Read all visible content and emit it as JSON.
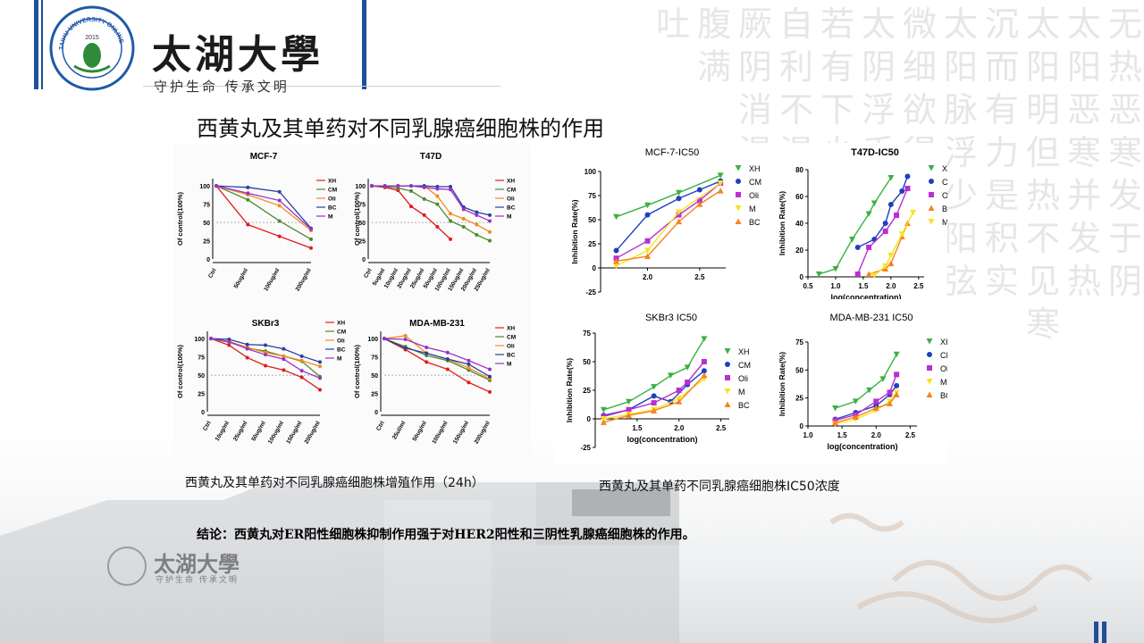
{
  "header": {
    "university_name": "太湖大學",
    "slogan": "守护生命 传承文明",
    "logo_text": "TAIHU UNIVERSITY ONLINE",
    "logo_year": "2015"
  },
  "slide": {
    "title": "西黄丸及其单药对不同乳腺癌细胞株的作用",
    "caption_left": "西黄丸及其单药对不同乳腺癌细胞株增殖作用（24h）",
    "caption_right": "西黄丸及其单药不同乳腺癌细胞株IC50浓度",
    "conclusion": "结论：西黄丸对ER阳性细胞株抑制作用强于对HER2阳性和三阴性乳腺癌细胞株的作用。"
  },
  "background_watermark": {
    "columns": [
      "无热恶寒发于阴",
      "太阳恶寒并发热",
      "太阳明但热不见寒",
      "沉而有力是积实",
      "太阳脉浮少阳弦",
      "微细欲得但欲寐",
      "太阴浮手足温",
      "若有下少足",
      "自利不渴",
      "厥阴消渴",
      "腹满",
      "吐"
    ]
  },
  "colors": {
    "XH": "#e41a1c",
    "CM": "#4d8a2a",
    "Oli": "#f58a1f",
    "BC": "#2a3fa0",
    "M": "#9b30c8",
    "ic_XH": "#3cb043",
    "ic_CM": "#1f3fbf",
    "ic_Oli": "#b92fd1",
    "ic_M": "#f5e51f",
    "ic_BC": "#f5821f",
    "accent_bar": "#1f4e9a"
  },
  "chart_data": [
    {
      "type": "line",
      "title": "MCF-7",
      "ylabel": "Of control(100%)",
      "xlabel": "",
      "categories": [
        "Ctrl",
        "50ug/ml",
        "100ug/ml",
        "200ug/ml"
      ],
      "ylim": [
        0,
        110
      ],
      "yticks": [
        "0",
        "25",
        "50",
        "75",
        "100"
      ],
      "reference_line": 50,
      "series": [
        {
          "name": "XH",
          "values": [
            100,
            47,
            31,
            15
          ]
        },
        {
          "name": "CM",
          "values": [
            100,
            81,
            52,
            27
          ]
        },
        {
          "name": "Oli",
          "values": [
            100,
            88,
            73,
            39
          ]
        },
        {
          "name": "BC",
          "values": [
            100,
            98,
            92,
            42
          ]
        },
        {
          "name": "M",
          "values": [
            100,
            90,
            80,
            41
          ]
        }
      ]
    },
    {
      "type": "line",
      "title": "T47D",
      "ylabel": "Of control(100%)",
      "xlabel": "",
      "categories": [
        "Ctrl",
        "5ug/ml",
        "10ug/ml",
        "20ug/ml",
        "25ug/ml",
        "50ug/ml",
        "100ug/ml",
        "150ug/ml",
        "200ug/ml",
        "250ug/ml"
      ],
      "ylim": [
        0,
        110
      ],
      "yticks": [
        "0",
        "25",
        "50",
        "75",
        "100"
      ],
      "reference_line": 50,
      "series": [
        {
          "name": "XH",
          "values": [
            100,
            98,
            94,
            72,
            60,
            44,
            27,
            null,
            null,
            null
          ]
        },
        {
          "name": "CM",
          "values": [
            100,
            99,
            97,
            93,
            82,
            75,
            52,
            44,
            33,
            25
          ]
        },
        {
          "name": "Oli",
          "values": [
            100,
            100,
            100,
            100,
            100,
            86,
            62,
            55,
            47,
            37
          ]
        },
        {
          "name": "BC",
          "values": [
            100,
            100,
            100,
            100,
            100,
            99,
            99,
            71,
            64,
            60
          ]
        },
        {
          "name": "M",
          "values": [
            100,
            100,
            100,
            100,
            98,
            96,
            95,
            68,
            60,
            52
          ]
        }
      ]
    },
    {
      "type": "line",
      "title": "SKBr3",
      "ylabel": "Of control(100%)",
      "xlabel": "",
      "categories": [
        "Ctrl",
        "10ug/ml",
        "25ug/ml",
        "50ug/ml",
        "100ug/ml",
        "150ug/ml",
        "200ug/ml"
      ],
      "ylim": [
        0,
        110
      ],
      "yticks": [
        "0",
        "25",
        "50",
        "75",
        "100",
        "125"
      ],
      "reference_line": 50,
      "series": [
        {
          "name": "XH",
          "values": [
            100,
            91,
            74,
            63,
            57,
            47,
            30
          ]
        },
        {
          "name": "CM",
          "values": [
            100,
            95,
            87,
            83,
            76,
            69,
            48
          ]
        },
        {
          "name": "Oli",
          "values": [
            100,
            96,
            88,
            81,
            76,
            70,
            62
          ]
        },
        {
          "name": "BC",
          "values": [
            100,
            99,
            92,
            91,
            86,
            76,
            68
          ]
        },
        {
          "name": "M",
          "values": [
            100,
            96,
            86,
            78,
            72,
            56,
            46
          ]
        }
      ]
    },
    {
      "type": "line",
      "title": "MDA-MB-231",
      "ylabel": "Of control(100%)",
      "xlabel": "",
      "categories": [
        "Ctrl",
        "25ul/ml",
        "50ug/ml",
        "100ug/ml",
        "150ug/ml",
        "200ug/ml"
      ],
      "ylim": [
        0,
        110
      ],
      "yticks": [
        "0",
        "25",
        "50",
        "75",
        "100"
      ],
      "reference_line": 50,
      "series": [
        {
          "name": "XH",
          "values": [
            100,
            85,
            68,
            58,
            40,
            27
          ]
        },
        {
          "name": "CM",
          "values": [
            100,
            89,
            77,
            70,
            57,
            43
          ]
        },
        {
          "name": "Oli",
          "values": [
            100,
            104,
            80,
            72,
            60,
            45
          ]
        },
        {
          "name": "BC",
          "values": [
            100,
            87,
            80,
            72,
            65,
            48
          ]
        },
        {
          "name": "M",
          "values": [
            100,
            99,
            88,
            81,
            70,
            58
          ]
        }
      ]
    },
    {
      "type": "scatter",
      "title": "MCF-7-IC50",
      "ylabel": "Inhibition Rate(%)",
      "xlabel": "",
      "xlim": [
        1.55,
        2.75
      ],
      "ylim": [
        -25,
        100
      ],
      "xticks": [
        2.0,
        2.5
      ],
      "yticks": [
        -25,
        0,
        25,
        50,
        75,
        100
      ],
      "series": [
        {
          "name": "XH",
          "points": [
            [
              1.7,
              53
            ],
            [
              2.0,
              65
            ],
            [
              2.3,
              78
            ],
            [
              2.7,
              96
            ]
          ]
        },
        {
          "name": "CM",
          "points": [
            [
              1.7,
              18
            ],
            [
              2.0,
              55
            ],
            [
              2.3,
              72
            ],
            [
              2.5,
              81
            ],
            [
              2.7,
              90
            ]
          ]
        },
        {
          "name": "Oli",
          "points": [
            [
              1.7,
              10
            ],
            [
              2.0,
              28
            ],
            [
              2.3,
              55
            ],
            [
              2.5,
              70
            ],
            [
              2.7,
              88
            ]
          ]
        },
        {
          "name": "M",
          "points": [
            [
              1.7,
              2
            ],
            [
              2.0,
              18
            ],
            [
              2.3,
              58
            ],
            [
              2.7,
              88
            ]
          ]
        },
        {
          "name": "BC",
          "points": [
            [
              1.7,
              7
            ],
            [
              2.0,
              12
            ],
            [
              2.3,
              48
            ],
            [
              2.5,
              66
            ],
            [
              2.7,
              80
            ]
          ]
        }
      ]
    },
    {
      "type": "scatter",
      "title": "T47D-IC50",
      "ylabel": "Inhibition Rate(%)",
      "xlabel": "log(concentration)",
      "xlim": [
        0.5,
        2.6
      ],
      "ylim": [
        0,
        80
      ],
      "xticks": [
        0.5,
        1.0,
        1.5,
        2.0,
        2.5
      ],
      "yticks": [
        0,
        20,
        40,
        60,
        80
      ],
      "series": [
        {
          "name": "XH",
          "points": [
            [
              0.7,
              2
            ],
            [
              1.0,
              6
            ],
            [
              1.3,
              28
            ],
            [
              1.6,
              47
            ],
            [
              1.7,
              55
            ],
            [
              2.0,
              74
            ]
          ]
        },
        {
          "name": "CM",
          "points": [
            [
              1.4,
              22
            ],
            [
              1.7,
              28
            ],
            [
              1.9,
              40
            ],
            [
              2.0,
              54
            ],
            [
              2.2,
              64
            ],
            [
              2.3,
              75
            ]
          ]
        },
        {
          "name": "Oli",
          "points": [
            [
              1.4,
              2
            ],
            [
              1.6,
              22
            ],
            [
              1.9,
              34
            ],
            [
              2.1,
              46
            ],
            [
              2.3,
              66
            ]
          ]
        },
        {
          "name": "BC",
          "points": [
            [
              1.6,
              2
            ],
            [
              1.9,
              6
            ],
            [
              2.0,
              10
            ],
            [
              2.2,
              30
            ],
            [
              2.3,
              40
            ]
          ]
        },
        {
          "name": "M",
          "points": [
            [
              1.7,
              1
            ],
            [
              1.9,
              8
            ],
            [
              2.0,
              16
            ],
            [
              2.2,
              32
            ],
            [
              2.4,
              48
            ]
          ]
        }
      ]
    },
    {
      "type": "scatter",
      "title": "SKBr3 IC50",
      "ylabel": "Inhibition Rate(%)",
      "xlabel": "log(concentration)",
      "xlim": [
        1.0,
        2.6
      ],
      "ylim": [
        -25,
        75
      ],
      "xticks": [
        1.5,
        2.0,
        2.5
      ],
      "yticks": [
        -25,
        0,
        25,
        50,
        75
      ],
      "series": [
        {
          "name": "XH",
          "points": [
            [
              1.1,
              8
            ],
            [
              1.4,
              15
            ],
            [
              1.7,
              28
            ],
            [
              1.9,
              38
            ],
            [
              2.1,
              45
            ],
            [
              2.3,
              70
            ]
          ]
        },
        {
          "name": "CM",
          "points": [
            [
              1.1,
              3
            ],
            [
              1.4,
              8
            ],
            [
              1.7,
              20
            ],
            [
              1.9,
              15
            ],
            [
              2.1,
              30
            ],
            [
              2.3,
              42
            ]
          ]
        },
        {
          "name": "Oli",
          "points": [
            [
              1.1,
              2
            ],
            [
              1.4,
              8
            ],
            [
              1.7,
              14
            ],
            [
              2.0,
              25
            ],
            [
              2.1,
              32
            ],
            [
              2.3,
              50
            ]
          ]
        },
        {
          "name": "M",
          "points": [
            [
              1.1,
              0
            ],
            [
              1.4,
              4
            ],
            [
              1.7,
              8
            ],
            [
              2.0,
              18
            ],
            [
              2.3,
              35
            ]
          ]
        },
        {
          "name": "BC",
          "points": [
            [
              1.1,
              -3
            ],
            [
              1.4,
              3
            ],
            [
              1.7,
              7
            ],
            [
              2.0,
              15
            ],
            [
              2.3,
              38
            ]
          ]
        }
      ]
    },
    {
      "type": "scatter",
      "title": "MDA-MB-231 IC50",
      "ylabel": "Inhibition Rate(%)",
      "xlabel": "log(concentration)",
      "xlim": [
        1.0,
        2.6
      ],
      "ylim": [
        0,
        75
      ],
      "xticks": [
        1.0,
        1.5,
        2.0,
        2.5
      ],
      "yticks": [
        0,
        25,
        50,
        75
      ],
      "series": [
        {
          "name": "XH",
          "points": [
            [
              1.4,
              16
            ],
            [
              1.7,
              22
            ],
            [
              1.9,
              32
            ],
            [
              2.1,
              42
            ],
            [
              2.3,
              64
            ]
          ]
        },
        {
          "name": "CM",
          "points": [
            [
              1.4,
              6
            ],
            [
              1.7,
              12
            ],
            [
              2.0,
              18
            ],
            [
              2.2,
              28
            ],
            [
              2.3,
              36
            ]
          ]
        },
        {
          "name": "Oli",
          "points": [
            [
              1.4,
              5
            ],
            [
              1.7,
              10
            ],
            [
              2.0,
              22
            ],
            [
              2.2,
              30
            ],
            [
              2.3,
              46
            ]
          ]
        },
        {
          "name": "M",
          "points": [
            [
              1.4,
              2
            ],
            [
              1.7,
              6
            ],
            [
              2.0,
              14
            ],
            [
              2.2,
              22
            ],
            [
              2.3,
              30
            ]
          ]
        },
        {
          "name": "BC",
          "points": [
            [
              1.4,
              3
            ],
            [
              1.7,
              8
            ],
            [
              2.0,
              16
            ],
            [
              2.2,
              20
            ],
            [
              2.3,
              28
            ]
          ]
        }
      ]
    }
  ]
}
